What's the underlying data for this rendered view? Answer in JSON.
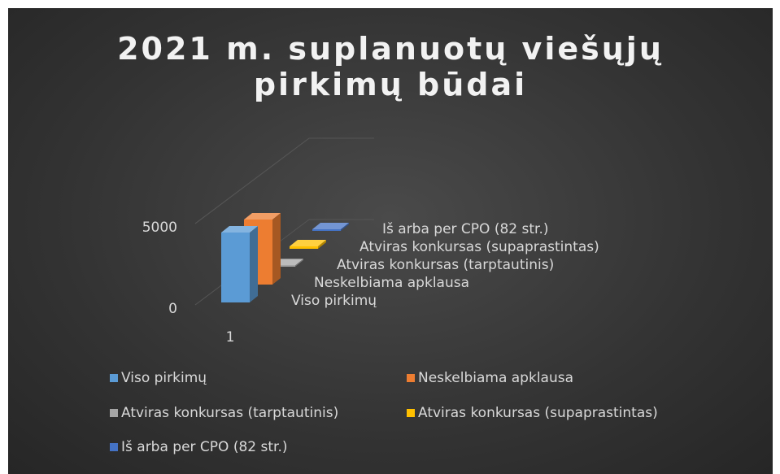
{
  "chart_data": {
    "type": "bar3d",
    "title": "2021 m. suplanuotų viešųjų pirkimų būdai",
    "categories": [
      "1"
    ],
    "series": [
      {
        "name": "Viso pirkimų",
        "color": "#5b9bd5",
        "values": [
          4300
        ]
      },
      {
        "name": "Neskelbiama apklausa",
        "color": "#ed7d31",
        "values": [
          4000
        ]
      },
      {
        "name": "Atviras konkursas (tarptautinis)",
        "color": "#a5a5a5",
        "values": [
          80
        ]
      },
      {
        "name": "Atviras konkursas (supaprastintas)",
        "color": "#ffc000",
        "values": [
          150
        ]
      },
      {
        "name": "Iš arba per CPO (82 str.)",
        "color": "#4472c4",
        "values": [
          100
        ]
      }
    ],
    "ylim": [
      0,
      10000
    ],
    "yticks": [
      0,
      5000
    ],
    "grid": true,
    "legend": "bottom"
  }
}
